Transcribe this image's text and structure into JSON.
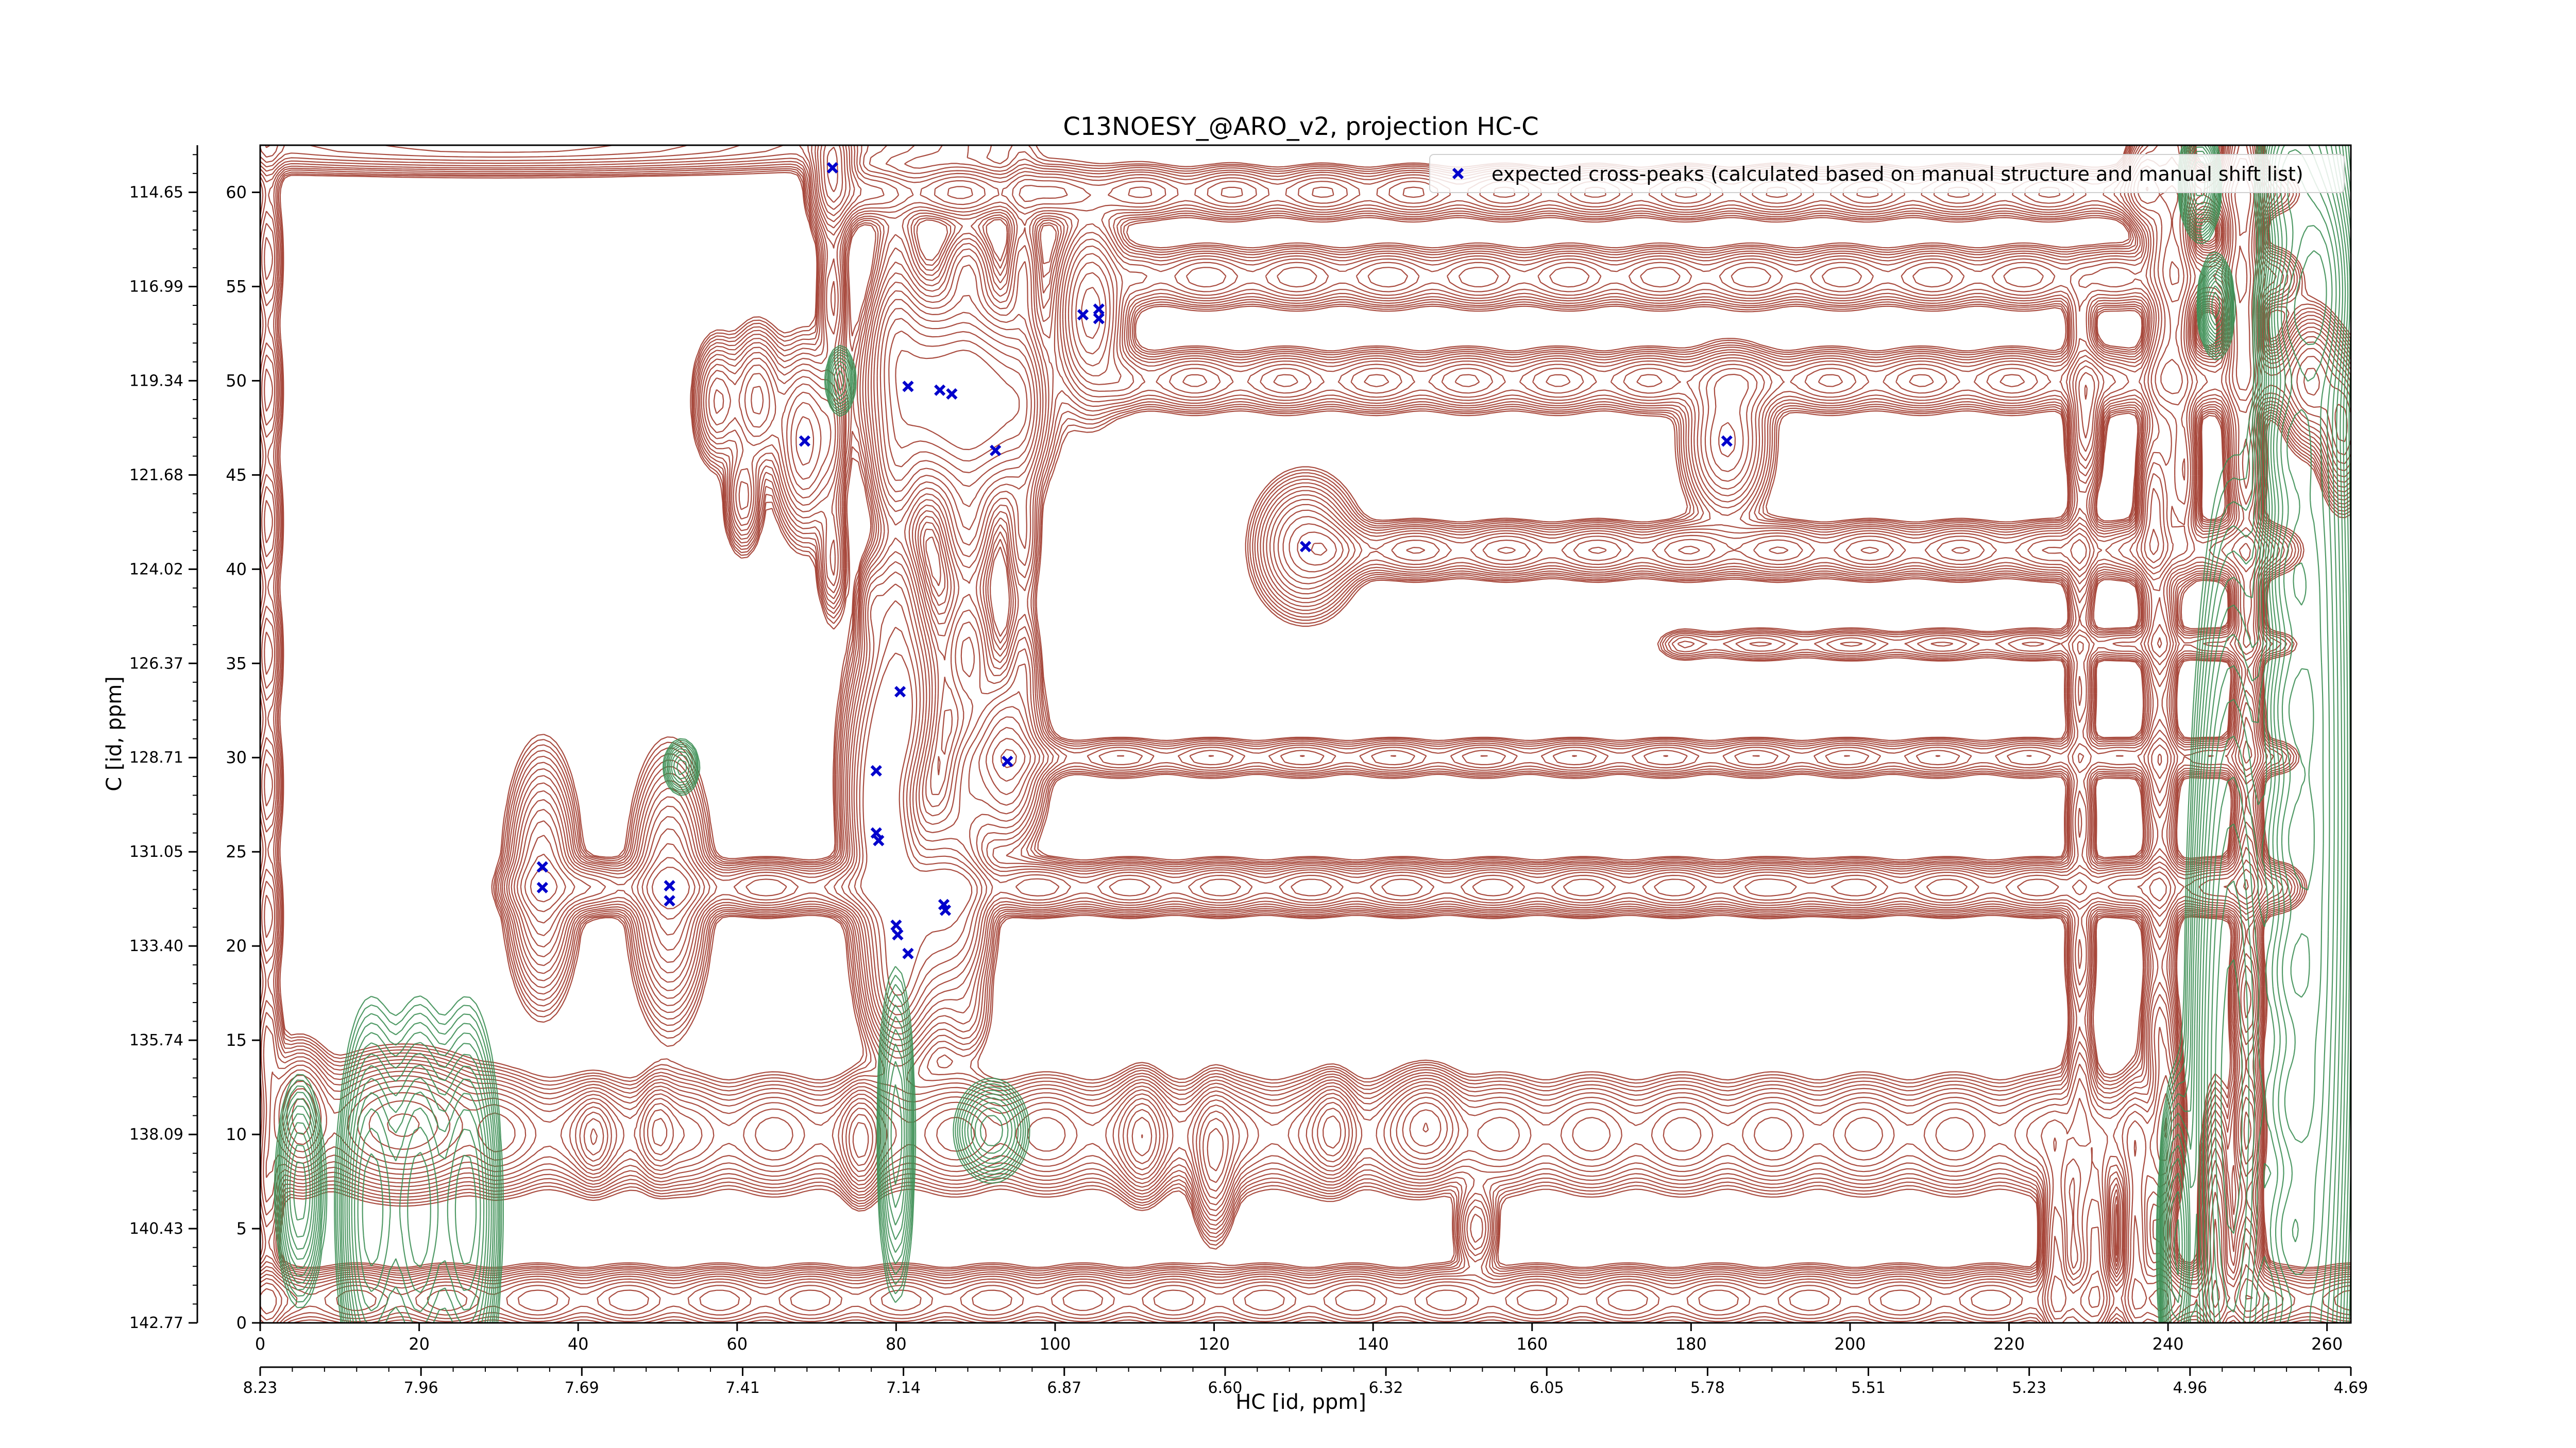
{
  "chart_data": {
    "type": "scatter",
    "title": "C13NOESY_@ARO_v2, projection HC-C",
    "xlabel": "HC [id, ppm]",
    "ylabel": "C [id, ppm]",
    "xlim": [
      0,
      263
    ],
    "ylim": [
      0,
      62.5
    ],
    "x_ticks": [
      0,
      20,
      40,
      60,
      80,
      100,
      120,
      140,
      160,
      180,
      200,
      220,
      240,
      260
    ],
    "y_ticks": [
      0,
      5,
      10,
      15,
      20,
      25,
      30,
      35,
      40,
      45,
      50,
      55,
      60
    ],
    "x_ppm_ticks": [
      "8.23",
      "7.96",
      "7.69",
      "7.41",
      "7.14",
      "6.87",
      "6.60",
      "6.32",
      "6.05",
      "5.78",
      "5.51",
      "5.23",
      "4.96",
      "4.69"
    ],
    "y_ppm_ticks": [
      "142.77",
      "140.43",
      "138.09",
      "135.74",
      "133.40",
      "131.05",
      "128.71",
      "126.37",
      "124.02",
      "121.68",
      "119.34",
      "116.99",
      "114.65"
    ],
    "legend": {
      "placement": "top-right",
      "label": "expected cross-peaks (calculated based on manual structure and manual shift list)"
    },
    "series": [
      {
        "name": "expected cross-peaks (calculated based on manual structure and manual shift list)",
        "color": "#0000cc",
        "marker": "x",
        "points": [
          [
            72,
            61.3
          ],
          [
            81.5,
            49.7
          ],
          [
            85.5,
            49.5
          ],
          [
            87,
            49.3
          ],
          [
            92.5,
            46.3
          ],
          [
            103.5,
            53.5
          ],
          [
            105.5,
            53.8
          ],
          [
            105.5,
            53.3
          ],
          [
            68.5,
            46.8
          ],
          [
            184.5,
            46.8
          ],
          [
            131.5,
            41.2
          ],
          [
            80.5,
            33.5
          ],
          [
            77.5,
            29.3
          ],
          [
            94,
            29.8
          ],
          [
            77.5,
            26.0
          ],
          [
            77.8,
            25.6
          ],
          [
            35.5,
            24.2
          ],
          [
            35.5,
            23.1
          ],
          [
            51.5,
            23.2
          ],
          [
            51.5,
            22.4
          ],
          [
            86,
            22.2
          ],
          [
            86.2,
            21.9
          ],
          [
            80,
            21.1
          ],
          [
            80.2,
            20.6
          ],
          [
            81.5,
            19.6
          ]
        ]
      }
    ],
    "contour_colors": {
      "positive": "#a0392b",
      "negative": "#3d8f55"
    },
    "contour_peaks": [
      {
        "x": 72,
        "y": 61.0,
        "sx": 1.6,
        "sy": 1.8,
        "amp": 1.0,
        "s": 1
      },
      {
        "x": 57.5,
        "y": 48.9,
        "sx": 1.5,
        "sy": 1.7,
        "amp": 0.8,
        "s": 1
      },
      {
        "x": 62.5,
        "y": 49.0,
        "sx": 1.8,
        "sy": 1.9,
        "amp": 1.0,
        "s": 1
      },
      {
        "x": 68.5,
        "y": 46.8,
        "sx": 2.0,
        "sy": 2.5,
        "amp": 1.3,
        "s": 1
      },
      {
        "x": 60.8,
        "y": 43.8,
        "sx": 1.2,
        "sy": 1.5,
        "amp": 0.7,
        "s": 1
      },
      {
        "x": 82.5,
        "y": 49.5,
        "sx": 3.5,
        "sy": 2.6,
        "amp": 1.3,
        "s": 1
      },
      {
        "x": 88,
        "y": 48.8,
        "sx": 3.2,
        "sy": 2.7,
        "amp": 1.2,
        "s": 1
      },
      {
        "x": 93.5,
        "y": 48.8,
        "sx": 3.2,
        "sy": 2.6,
        "amp": 1.2,
        "s": 1
      },
      {
        "x": 104.5,
        "y": 53.6,
        "sx": 2.3,
        "sy": 2.6,
        "amp": 1.3,
        "s": 1
      },
      {
        "x": 184.5,
        "y": 46.8,
        "sx": 2.8,
        "sy": 2.2,
        "amp": 1.0,
        "s": 1
      },
      {
        "x": 131.5,
        "y": 41.2,
        "sx": 3.2,
        "sy": 1.8,
        "amp": 1.1,
        "s": 1
      },
      {
        "x": 80.5,
        "y": 33.5,
        "sx": 2.6,
        "sy": 2.9,
        "amp": 1.3,
        "s": 1
      },
      {
        "x": 77.5,
        "y": 29.3,
        "sx": 2.2,
        "sy": 3.0,
        "amp": 1.2,
        "s": 1
      },
      {
        "x": 94,
        "y": 29.8,
        "sx": 2.4,
        "sy": 2.4,
        "amp": 1.2,
        "s": 1
      },
      {
        "x": 77.8,
        "y": 25.8,
        "sx": 2.0,
        "sy": 2.6,
        "amp": 1.1,
        "s": 1
      },
      {
        "x": 35.5,
        "y": 23.6,
        "sx": 2.2,
        "sy": 3.2,
        "amp": 1.2,
        "s": 1
      },
      {
        "x": 51.5,
        "y": 23.0,
        "sx": 2.4,
        "sy": 3.4,
        "amp": 1.2,
        "s": 1
      },
      {
        "x": 86,
        "y": 22.0,
        "sx": 2.6,
        "sy": 2.8,
        "amp": 1.2,
        "s": 1
      },
      {
        "x": 80.5,
        "y": 20.5,
        "sx": 2.7,
        "sy": 3.2,
        "amp": 1.3,
        "s": 1
      },
      {
        "x": 77,
        "y": 38.0,
        "sx": 1.0,
        "sy": 1.4,
        "amp": 0.5,
        "s": 1
      },
      {
        "x": 5,
        "y": 11.0,
        "sx": 2.0,
        "sy": 1.8,
        "amp": 1.2,
        "s": 1
      },
      {
        "x": 18,
        "y": 10.5,
        "sx": 6.0,
        "sy": 1.8,
        "amp": 1.2,
        "s": 1
      },
      {
        "x": 75.5,
        "y": 9.5,
        "sx": 1.2,
        "sy": 1.5,
        "amp": 0.8,
        "s": 1
      },
      {
        "x": 111,
        "y": 9.8,
        "sx": 1.5,
        "sy": 1.6,
        "amp": 0.8,
        "s": 1
      },
      {
        "x": 120,
        "y": 8.5,
        "sx": 1.4,
        "sy": 2.0,
        "amp": 0.9,
        "s": 1
      },
      {
        "x": 135,
        "y": 10.2,
        "sx": 1.5,
        "sy": 1.4,
        "amp": 0.8,
        "s": 1
      },
      {
        "x": 147,
        "y": 10.5,
        "sx": 2.4,
        "sy": 1.4,
        "amp": 0.9,
        "s": 1
      },
      {
        "x": 153,
        "y": 5.0,
        "sx": 1.4,
        "sy": 1.3,
        "amp": 0.6,
        "s": 1
      },
      {
        "x": 42,
        "y": 9.8,
        "sx": 1.2,
        "sy": 1.2,
        "amp": 0.6,
        "s": 1
      },
      {
        "x": 50,
        "y": 10.2,
        "sx": 1.3,
        "sy": 1.4,
        "amp": 0.6,
        "s": 1
      },
      {
        "x": 14,
        "y": 6.0,
        "sx": 2.0,
        "sy": 5.0,
        "amp": 0.9,
        "s": -1
      },
      {
        "x": 20,
        "y": 6.0,
        "sx": 2.0,
        "sy": 5.0,
        "amp": 0.9,
        "s": -1
      },
      {
        "x": 26,
        "y": 6.0,
        "sx": 2.0,
        "sy": 5.0,
        "amp": 0.9,
        "s": -1
      },
      {
        "x": 5,
        "y": 7.0,
        "sx": 1.5,
        "sy": 3.0,
        "amp": 0.6,
        "s": -1
      },
      {
        "x": 80,
        "y": 10.0,
        "sx": 1.2,
        "sy": 4.5,
        "amp": 0.5,
        "s": -1
      },
      {
        "x": 92,
        "y": 10.2,
        "sx": 2.4,
        "sy": 1.4,
        "amp": 0.5,
        "s": -1
      },
      {
        "x": 73,
        "y": 50.0,
        "sx": 1.0,
        "sy": 1.0,
        "amp": 0.4,
        "s": -1
      },
      {
        "x": 53,
        "y": 29.5,
        "sx": 1.2,
        "sy": 0.8,
        "amp": 0.4,
        "s": -1
      },
      {
        "x": 248,
        "y": 12.0,
        "sx": 2.5,
        "sy": 14.0,
        "amp": 1.3,
        "s": -1
      },
      {
        "x": 258,
        "y": 28.0,
        "sx": 2.8,
        "sy": 24.0,
        "amp": 1.3,
        "s": -1
      },
      {
        "x": 241,
        "y": 4.0,
        "sx": 1.0,
        "sy": 4.0,
        "amp": 1.0,
        "s": -1
      },
      {
        "x": 236,
        "y": 4.0,
        "sx": 1.0,
        "sy": 4.0,
        "amp": 1.0,
        "s": 1
      },
      {
        "x": 226,
        "y": 3.5,
        "sx": 1.0,
        "sy": 3.5,
        "amp": 1.0,
        "s": 1
      },
      {
        "x": 231,
        "y": 3.5,
        "sx": 1.0,
        "sy": 3.5,
        "amp": 1.0,
        "s": 1
      },
      {
        "x": 246,
        "y": 4.0,
        "sx": 1.0,
        "sy": 4.0,
        "amp": 1.0,
        "s": 1
      },
      {
        "x": 240,
        "y": 11.0,
        "sx": 1.0,
        "sy": 2.0,
        "amp": 0.8,
        "s": 1
      },
      {
        "x": 241,
        "y": 56.0,
        "sx": 1.2,
        "sy": 6.0,
        "amp": 1.0,
        "s": 1
      },
      {
        "x": 249,
        "y": 56.0,
        "sx": 1.2,
        "sy": 6.0,
        "amp": 1.0,
        "s": 1
      },
      {
        "x": 258,
        "y": 50.0,
        "sx": 2.0,
        "sy": 1.8,
        "amp": 1.2,
        "s": 1
      },
      {
        "x": 262,
        "y": 47.5,
        "sx": 1.5,
        "sy": 2.0,
        "amp": 1.2,
        "s": 1
      },
      {
        "x": 259,
        "y": 55.0,
        "sx": 2.2,
        "sy": 3.0,
        "amp": 0.9,
        "s": -1
      },
      {
        "x": 246,
        "y": 54.0,
        "sx": 1.0,
        "sy": 1.2,
        "amp": 0.9,
        "s": -1
      },
      {
        "x": 242,
        "y": 45.0,
        "sx": 1.0,
        "sy": 2.5,
        "amp": 0.8,
        "s": 1
      },
      {
        "x": 238,
        "y": 43.0,
        "sx": 1.0,
        "sy": 2.5,
        "amp": 0.8,
        "s": 1
      },
      {
        "x": 230,
        "y": 48.0,
        "sx": 1.0,
        "sy": 2.0,
        "amp": 0.7,
        "s": 1
      },
      {
        "x": 237,
        "y": 60.5,
        "sx": 1.2,
        "sy": 1.4,
        "amp": 0.9,
        "s": 1
      },
      {
        "x": 244,
        "y": 60.5,
        "sx": 1.2,
        "sy": 1.4,
        "amp": 0.9,
        "s": -1
      },
      {
        "x": 30,
        "y": 62.5,
        "sx": 30.0,
        "sy": 0.8,
        "amp": 0.7,
        "s": 1
      }
    ],
    "contour_ridges": [
      {
        "y": 23.1,
        "x0": 35,
        "x1": 192,
        "sy": 0.75,
        "amp": 0.75,
        "s": 1
      },
      {
        "y": 23.1,
        "x0": 197,
        "x1": 252,
        "sy": 0.75,
        "amp": 0.75,
        "s": 1
      },
      {
        "y": 41.0,
        "x0": 135,
        "x1": 252,
        "sy": 0.8,
        "amp": 0.65,
        "s": 1
      },
      {
        "y": 50.0,
        "x0": 110,
        "x1": 252,
        "sy": 0.9,
        "amp": 0.55,
        "s": 1
      },
      {
        "y": 55.5,
        "x0": 112,
        "x1": 252,
        "sy": 0.9,
        "amp": 0.5,
        "s": 1
      },
      {
        "y": 60.0,
        "x0": 75,
        "x1": 252,
        "sy": 0.8,
        "amp": 0.45,
        "s": 1
      },
      {
        "y": 10.0,
        "x0": 30,
        "x1": 235,
        "sy": 1.6,
        "amp": 0.6,
        "s": 1
      },
      {
        "y": 1.2,
        "x0": 0,
        "x1": 263,
        "sy": 0.9,
        "amp": 0.75,
        "s": 1
      },
      {
        "y": 30.0,
        "x0": 94,
        "x1": 252,
        "sy": 0.6,
        "amp": 0.35,
        "s": 1
      },
      {
        "y": 36.0,
        "x0": 180,
        "x1": 252,
        "sy": 0.5,
        "amp": 0.3,
        "s": 1
      }
    ],
    "contour_columns": [
      {
        "x": 80,
        "y0": 18,
        "y1": 55,
        "sx": 1.7,
        "amp": 0.6,
        "s": 1
      },
      {
        "x": 89,
        "y0": 18,
        "y1": 55,
        "sx": 1.8,
        "amp": 0.45,
        "s": 1
      },
      {
        "x": 96,
        "y0": 35,
        "y1": 58,
        "sx": 1.2,
        "amp": 0.35,
        "s": 1
      },
      {
        "x": 72,
        "y0": 40,
        "y1": 62,
        "sx": 1.0,
        "amp": 0.45,
        "s": 1
      },
      {
        "x": 239,
        "y0": 0,
        "y1": 62,
        "sx": 1.2,
        "amp": 0.6,
        "s": 1
      },
      {
        "x": 250,
        "y0": 0,
        "y1": 62,
        "sx": 1.1,
        "amp": 0.7,
        "s": 1
      },
      {
        "x": 229,
        "y0": 0,
        "y1": 52,
        "sx": 1.0,
        "amp": 0.45,
        "s": 1
      },
      {
        "x": 255,
        "y0": 0,
        "y1": 62,
        "sx": 1.8,
        "amp": 0.6,
        "s": -1
      },
      {
        "x": 1,
        "y0": 0,
        "y1": 62,
        "sx": 1.0,
        "amp": 0.4,
        "s": 1
      }
    ]
  }
}
